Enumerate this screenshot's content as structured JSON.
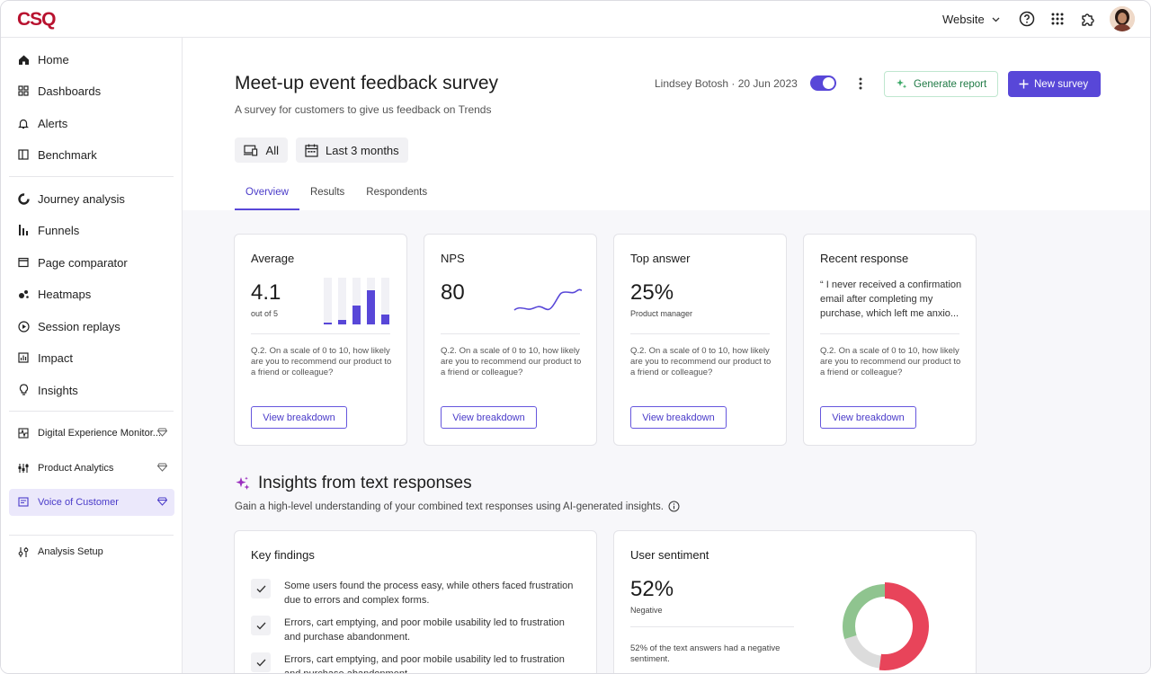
{
  "app": {
    "logo": "CSQ"
  },
  "topbar": {
    "website_label": "Website"
  },
  "sidebar": {
    "items": [
      {
        "label": "Home",
        "icon": "home-icon"
      },
      {
        "label": "Dashboards",
        "icon": "dashboards-icon"
      },
      {
        "label": "Alerts",
        "icon": "bell-icon"
      },
      {
        "label": "Benchmark",
        "icon": "benchmark-icon"
      },
      {
        "label": "Journey analysis",
        "icon": "journey-icon"
      },
      {
        "label": "Funnels",
        "icon": "funnels-icon"
      },
      {
        "label": "Page comparator",
        "icon": "page-comparator-icon"
      },
      {
        "label": "Heatmaps",
        "icon": "heatmaps-icon"
      },
      {
        "label": "Session replays",
        "icon": "play-icon"
      },
      {
        "label": "Impact",
        "icon": "impact-icon"
      },
      {
        "label": "Insights",
        "icon": "lightbulb-icon"
      },
      {
        "label": "Digital Experience Monitor...",
        "icon": "monitor-icon"
      },
      {
        "label": "Product Analytics",
        "icon": "analytics-icon"
      },
      {
        "label": "Voice of Customer",
        "icon": "voice-icon"
      },
      {
        "label": "Analysis Setup",
        "icon": "settings-sliders-icon"
      }
    ]
  },
  "header": {
    "title": "Meet-up event feedback survey",
    "subtitle": "A survey for customers to give us feedback on Trends",
    "author": "Lindsey Botosh",
    "date": "20 Jun 2023",
    "generate_label": "Generate report",
    "new_survey_label": "New survey",
    "filter_device": "All",
    "filter_period": "Last 3 months",
    "tabs": [
      "Overview",
      "Results",
      "Respondents"
    ]
  },
  "cards": [
    {
      "title": "Average",
      "value": "4.1",
      "sub": "out of 5",
      "question": "Q.2. On a scale of 0 to 10, how likely are you to recommend our product to a friend or colleague?",
      "button": "View breakdown",
      "bar_levels": [
        0.04,
        0.1,
        0.4,
        0.74,
        0.22
      ]
    },
    {
      "title": "NPS",
      "value": "80",
      "question": "Q.2. On a scale of 0 to 10, how likely are you to recommend our product to a friend or colleague?",
      "button": "View breakdown"
    },
    {
      "title": "Top answer",
      "value": "25%",
      "sub": "Product manager",
      "question": "Q.2. On a scale of 0 to 10, how likely are you to recommend our product to a friend or colleague?",
      "button": "View breakdown"
    },
    {
      "title": "Recent response",
      "quote": "“ I never received a confirmation email after completing my purchase, which left me anxio...",
      "question": "Q.2. On a scale of 0 to 10, how likely are you to recommend our product to a friend or colleague?",
      "button": "View breakdown"
    }
  ],
  "insights": {
    "title": "Insights from text responses",
    "subtitle": "Gain a high-level understanding of your combined text responses using AI-generated insights."
  },
  "key_findings": {
    "title": "Key findings",
    "items": [
      "Some users found the process easy, while others faced frustration due to errors and complex forms.",
      "Errors, cart emptying, and poor mobile usability led to frustration and purchase abandonment.",
      "Errors, cart emptying, and poor mobile usability led to frustration and purchase abandonment."
    ]
  },
  "sentiment": {
    "title": "User sentiment",
    "value": "52%",
    "label": "Negative",
    "note": "52% of the text answers had a negative sentiment.",
    "segments": {
      "negative": 0.52,
      "positive": 0.3,
      "neutral": 0.18
    },
    "colors": {
      "negative": "#e8445a",
      "positive": "#8fc48f",
      "neutral": "#dcdcdc"
    }
  },
  "colors": {
    "accent": "#5847d8",
    "brand": "#b8122f"
  }
}
